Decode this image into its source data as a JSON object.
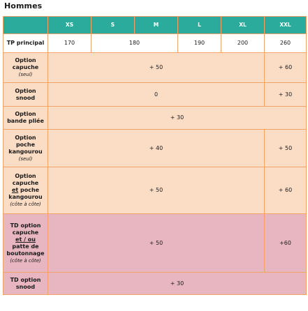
{
  "title": "Hommes",
  "headers": [
    "XS",
    "S",
    "M",
    "L",
    "XL",
    "XXL"
  ],
  "tp_principal": {
    "label": "TP principal",
    "xs": "170",
    "s_m": "180",
    "l": "190",
    "xl": "200",
    "xxl": "260"
  },
  "rows": {
    "capuche": {
      "label": "Option capuche",
      "sub": "(seul)",
      "main": "+ 50",
      "xxl": "+ 60"
    },
    "snood": {
      "label": "Option snood",
      "main": "0",
      "xxl": "+ 30"
    },
    "bande": {
      "label": "Option bande pliée",
      "all": "+ 30"
    },
    "poche": {
      "label": "Option poche kangourou",
      "sub": "(seul)",
      "main": "+ 40",
      "xxl": "+ 50"
    },
    "capuche_poche": {
      "label_a": "Option capuche",
      "label_et": "et",
      "label_b": " poche kangourou",
      "sub": "(côte à côte)",
      "main": "+ 50",
      "xxl": "+ 60"
    },
    "td_capuche": {
      "label_a": "TD option capuche",
      "label_etou": "et / ou",
      "label_b": "patte de boutonnage",
      "sub": "(côte à côte)",
      "main": "+ 50",
      "xxl": "+60"
    },
    "td_snood": {
      "label": "TD option snood",
      "all": "+ 30"
    }
  },
  "colors": {
    "header": "#2aab9b",
    "peach": "#fbdcc4",
    "pink": "#e8b6c0",
    "border": "#f0a46a"
  }
}
